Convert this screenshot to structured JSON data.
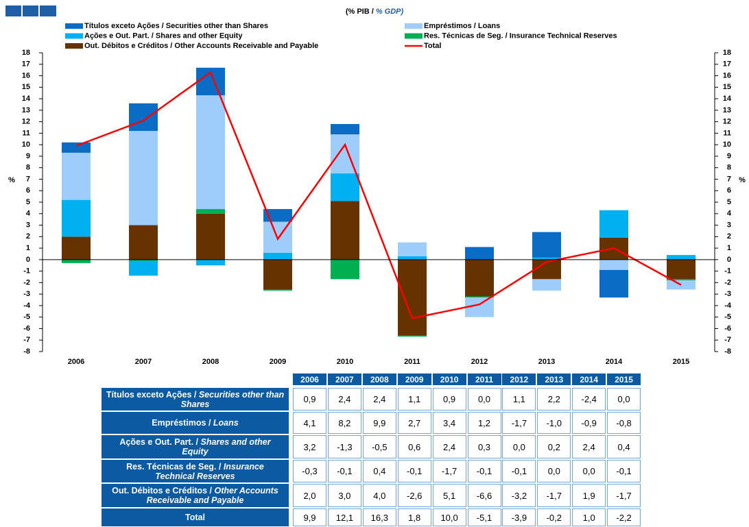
{
  "chart_data": {
    "type": "bar",
    "title": "(% PIB / % GDP)",
    "ylabel": "%",
    "y2label": "%",
    "categories": [
      "2006",
      "2007",
      "2008",
      "2009",
      "2010",
      "2011",
      "2012",
      "2013",
      "2014",
      "2015"
    ],
    "series": [
      {
        "name": "Títulos exceto Ações / Securities other than Shares",
        "type": "bar",
        "color": "#0a6cc4",
        "values": [
          0.9,
          2.4,
          2.4,
          1.1,
          0.9,
          0.0,
          1.1,
          2.2,
          -2.4,
          0.0
        ],
        "value_labels": [
          "0,9",
          "2,4",
          "2,4",
          "1,1",
          "0,9",
          "0,0",
          "1,1",
          "2,2",
          "-2,4",
          "0,0"
        ]
      },
      {
        "name": "Empréstimos / Loans",
        "type": "bar",
        "color": "#9fcdfb",
        "values": [
          4.1,
          8.2,
          9.9,
          2.7,
          3.4,
          1.2,
          -1.7,
          -1.0,
          -0.9,
          -0.8
        ],
        "value_labels": [
          "4,1",
          "8,2",
          "9,9",
          "2,7",
          "3,4",
          "1,2",
          "-1,7",
          "-1,0",
          "-0,9",
          "-0,8"
        ]
      },
      {
        "name": "Ações e Out. Part. / Shares and other Equity",
        "type": "bar",
        "color": "#00b0f0",
        "values": [
          3.2,
          -1.3,
          -0.5,
          0.6,
          2.4,
          0.3,
          0.0,
          0.2,
          2.4,
          0.4
        ],
        "value_labels": [
          "3,2",
          "-1,3",
          "-0,5",
          "0,6",
          "2,4",
          "0,3",
          "0,0",
          "0,2",
          "2,4",
          "0,4"
        ]
      },
      {
        "name": "Res. Técnicas de Seg. / Insurance Technical Reserves",
        "type": "bar",
        "color": "#00b050",
        "values": [
          -0.3,
          -0.1,
          0.4,
          -0.1,
          -1.7,
          -0.1,
          -0.1,
          0.0,
          0.0,
          -0.1
        ],
        "value_labels": [
          "-0,3",
          "-0,1",
          "0,4",
          "-0,1",
          "-1,7",
          "-0,1",
          "-0,1",
          "0,0",
          "0,0",
          "-0,1"
        ]
      },
      {
        "name": "Out. Débitos e Créditos / Other Accounts Receivable and Payable",
        "type": "bar",
        "color": "#663300",
        "values": [
          2.0,
          3.0,
          4.0,
          -2.6,
          5.1,
          -6.6,
          -3.2,
          -1.7,
          1.9,
          -1.7
        ],
        "value_labels": [
          "2,0",
          "3,0",
          "4,0",
          "-2,6",
          "5,1",
          "-6,6",
          "-3,2",
          "-1,7",
          "1,9",
          "-1,7"
        ]
      },
      {
        "name": "Total",
        "type": "line",
        "color": "#ff0000",
        "values": [
          9.9,
          12.1,
          16.3,
          1.8,
          10.0,
          -5.1,
          -3.9,
          -0.2,
          1.0,
          -2.2
        ],
        "value_labels": [
          "9,9",
          "12,1",
          "16,3",
          "1,8",
          "10,0",
          "-5,1",
          "-3,9",
          "-0,2",
          "1,0",
          "-2,2"
        ]
      }
    ],
    "ylim": [
      -8,
      18
    ],
    "yticks": [
      -8,
      -7,
      -6,
      -5,
      -4,
      -3,
      -2,
      -1,
      0,
      1,
      2,
      3,
      4,
      5,
      6,
      7,
      8,
      9,
      10,
      11,
      12,
      13,
      14,
      15,
      16,
      17,
      18
    ],
    "y2lim": [
      -8,
      18
    ],
    "y2ticks": [
      -8,
      -7,
      -6,
      -5,
      -4,
      -3,
      -2,
      -1,
      0,
      1,
      2,
      3,
      4,
      5,
      6,
      7,
      8,
      9,
      10,
      11,
      12,
      13,
      14,
      15,
      16,
      17,
      18
    ],
    "grid": false
  }
}
